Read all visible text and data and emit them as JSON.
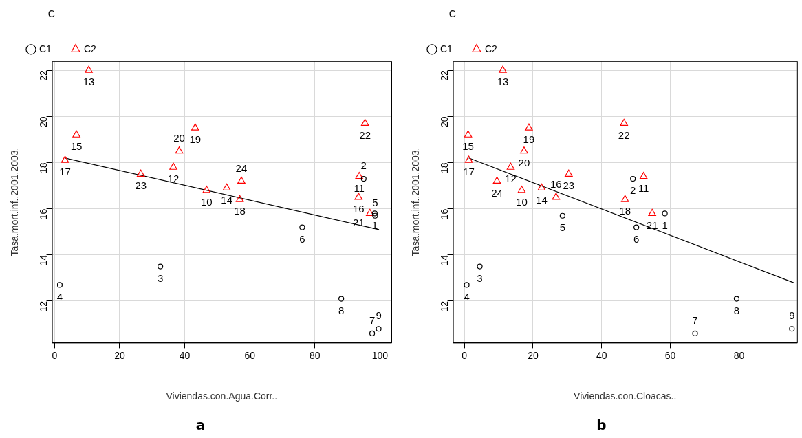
{
  "chart_data": [
    {
      "type": "scatter",
      "xlabel": "Viviendas.con.Agua.Corr..",
      "ylabel": "Tasa.mort.inf..2001.2003.",
      "legend_title": "C",
      "legend": "top left",
      "grid": true,
      "xlim": [
        -0.8,
        103.5
      ],
      "xticks": [
        0,
        20,
        40,
        60,
        80,
        100
      ],
      "ylim": [
        10.2,
        22.4
      ],
      "yticks": [
        12,
        14,
        16,
        18,
        20,
        22
      ],
      "annotations": [
        "a",
        {
          "text": "1",
          "x": 98.4,
          "y": 15.8
        },
        {
          "text": "2",
          "x": 95.0,
          "y": 17.3
        },
        {
          "text": "3",
          "x": 32.5,
          "y": 13.5
        },
        {
          "text": "4",
          "x": 1.6,
          "y": 12.7
        },
        {
          "text": "5",
          "x": 98.5,
          "y": 15.7
        },
        {
          "text": "6",
          "x": 76.1,
          "y": 15.2
        },
        {
          "text": "7",
          "x": 97.6,
          "y": 10.6
        },
        {
          "text": "8",
          "x": 88.1,
          "y": 12.1
        },
        {
          "text": "9",
          "x": 99.6,
          "y": 10.8
        },
        {
          "text": "10",
          "x": 46.7,
          "y": 16.8
        },
        {
          "text": "11",
          "x": 93.6,
          "y": 17.4
        },
        {
          "text": "12",
          "x": 36.5,
          "y": 17.8
        },
        {
          "text": "13",
          "x": 10.5,
          "y": 22.0
        },
        {
          "text": "14",
          "x": 52.9,
          "y": 16.9
        },
        {
          "text": "15",
          "x": 6.7,
          "y": 19.2
        },
        {
          "text": "16",
          "x": 93.4,
          "y": 16.5
        },
        {
          "text": "17",
          "x": 3.2,
          "y": 18.1
        },
        {
          "text": "18",
          "x": 56.9,
          "y": 16.4
        },
        {
          "text": "19",
          "x": 43.2,
          "y": 19.5
        },
        {
          "text": "20",
          "x": 38.3,
          "y": 18.5
        },
        {
          "text": "21",
          "x": 96.9,
          "y": 15.8
        },
        {
          "text": "22",
          "x": 95.4,
          "y": 19.7
        },
        {
          "text": "23",
          "x": 26.5,
          "y": 17.5
        },
        {
          "text": "24",
          "x": 57.4,
          "y": 17.2
        }
      ],
      "series": [
        {
          "name": "C1",
          "color": "#000000",
          "marker": "circle",
          "x": [
            98.4,
            95.0,
            32.5,
            1.6,
            98.5,
            76.1,
            97.6,
            88.1,
            99.6
          ],
          "values": [
            15.8,
            17.3,
            13.5,
            12.7,
            15.7,
            15.2,
            10.6,
            12.1,
            10.8
          ]
        },
        {
          "name": "C2",
          "color": "#ff0000",
          "marker": "triangle",
          "x": [
            46.7,
            93.6,
            36.5,
            10.5,
            52.9,
            6.7,
            93.4,
            3.2,
            56.9,
            43.2,
            38.3,
            96.9,
            95.4,
            26.5,
            57.4
          ],
          "values": [
            16.8,
            17.4,
            17.8,
            22.0,
            16.9,
            19.2,
            16.5,
            18.1,
            16.4,
            19.5,
            18.5,
            15.8,
            19.7,
            17.5,
            17.2
          ]
        },
        {
          "type": "line",
          "color": "#000000",
          "marker": "none",
          "x": [
            3.2,
            99.7
          ],
          "values": [
            18.2,
            15.1
          ]
        }
      ]
    },
    {
      "type": "scatter",
      "xlabel": "Viviendas.con.Cloacas..",
      "ylabel": "Tasa.mort.inf..2001.2003.",
      "legend_title": "C",
      "legend": "top left",
      "grid": true,
      "xlim": [
        -3.3,
        96.9
      ],
      "xticks": [
        0,
        20,
        40,
        60,
        80
      ],
      "ylim": [
        10.2,
        22.4
      ],
      "yticks": [
        12,
        14,
        16,
        18,
        20,
        22
      ],
      "annotations": [
        "b",
        {
          "text": "1",
          "x": 58.4,
          "y": 15.8
        },
        {
          "text": "2",
          "x": 49.1,
          "y": 17.3
        },
        {
          "text": "3",
          "x": 4.5,
          "y": 13.5
        },
        {
          "text": "4",
          "x": 0.7,
          "y": 12.7
        },
        {
          "text": "5",
          "x": 28.6,
          "y": 15.7
        },
        {
          "text": "6",
          "x": 50.1,
          "y": 15.2
        },
        {
          "text": "7",
          "x": 67.2,
          "y": 10.6
        },
        {
          "text": "8",
          "x": 79.3,
          "y": 12.1
        },
        {
          "text": "9",
          "x": 95.4,
          "y": 10.8
        },
        {
          "text": "10",
          "x": 16.7,
          "y": 16.8
        },
        {
          "text": "11",
          "x": 52.2,
          "y": 17.4
        },
        {
          "text": "12",
          "x": 13.5,
          "y": 17.8
        },
        {
          "text": "13",
          "x": 11.2,
          "y": 22.0
        },
        {
          "text": "14",
          "x": 22.5,
          "y": 16.9
        },
        {
          "text": "15",
          "x": 1.1,
          "y": 19.2
        },
        {
          "text": "16",
          "x": 26.7,
          "y": 16.5
        },
        {
          "text": "17",
          "x": 1.3,
          "y": 18.1
        },
        {
          "text": "18",
          "x": 46.8,
          "y": 16.4
        },
        {
          "text": "19",
          "x": 18.8,
          "y": 19.5
        },
        {
          "text": "20",
          "x": 17.4,
          "y": 18.5
        },
        {
          "text": "21",
          "x": 54.7,
          "y": 15.8
        },
        {
          "text": "22",
          "x": 46.5,
          "y": 19.7
        },
        {
          "text": "23",
          "x": 30.4,
          "y": 17.5
        },
        {
          "text": "24",
          "x": 9.5,
          "y": 17.2
        }
      ],
      "series": [
        {
          "name": "C1",
          "color": "#000000",
          "marker": "circle",
          "x": [
            58.4,
            49.1,
            4.5,
            0.7,
            28.6,
            50.1,
            67.2,
            79.3,
            95.4
          ],
          "values": [
            15.8,
            17.3,
            13.5,
            12.7,
            15.7,
            15.2,
            10.6,
            12.1,
            10.8
          ]
        },
        {
          "name": "C2",
          "color": "#ff0000",
          "marker": "triangle",
          "x": [
            16.7,
            52.2,
            13.5,
            11.2,
            22.5,
            1.1,
            26.7,
            1.3,
            46.8,
            18.8,
            17.4,
            54.7,
            46.5,
            30.4,
            9.5
          ],
          "values": [
            16.8,
            17.4,
            17.8,
            22.0,
            16.9,
            19.2,
            16.5,
            18.1,
            16.4,
            19.5,
            18.5,
            15.8,
            19.7,
            17.5,
            17.2
          ]
        },
        {
          "type": "line",
          "color": "#000000",
          "marker": "none",
          "x": [
            1.3,
            95.9
          ],
          "values": [
            18.2,
            12.8
          ]
        }
      ]
    }
  ]
}
